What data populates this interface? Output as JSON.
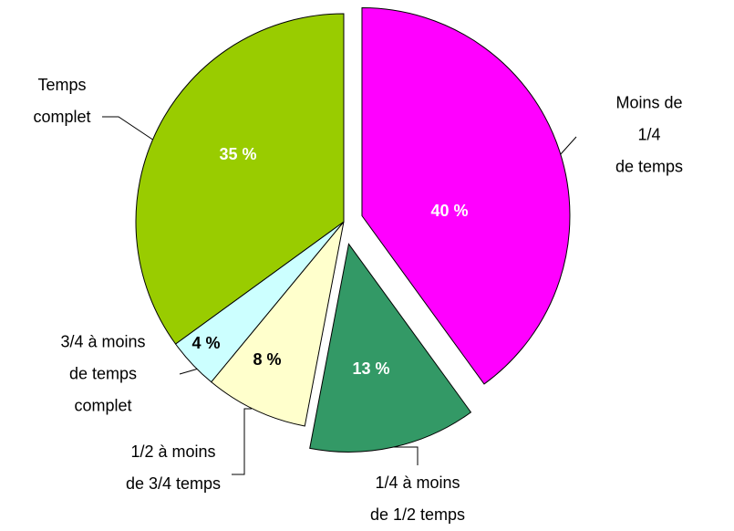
{
  "chart_data": {
    "type": "pie",
    "categories": [
      "Moins de 1/4\nde temps",
      "1/4 à moins\nde 1/2 temps",
      "1/2 à moins\nde 3/4 temps",
      "3/4 à moins\nde temps\ncomplet",
      "Temps\ncomplet"
    ],
    "values": [
      40,
      13,
      8,
      4,
      35
    ],
    "value_labels": [
      "40 %",
      "13 %",
      "8 %",
      "4 %",
      "35 %"
    ],
    "colors": [
      "#ff00ff",
      "#339966",
      "#ffffcc",
      "#ccffff",
      "#99cc00"
    ],
    "value_label_colors": [
      "#ffffff",
      "#ffffff",
      "#000000",
      "#000000",
      "#ffffff"
    ]
  }
}
